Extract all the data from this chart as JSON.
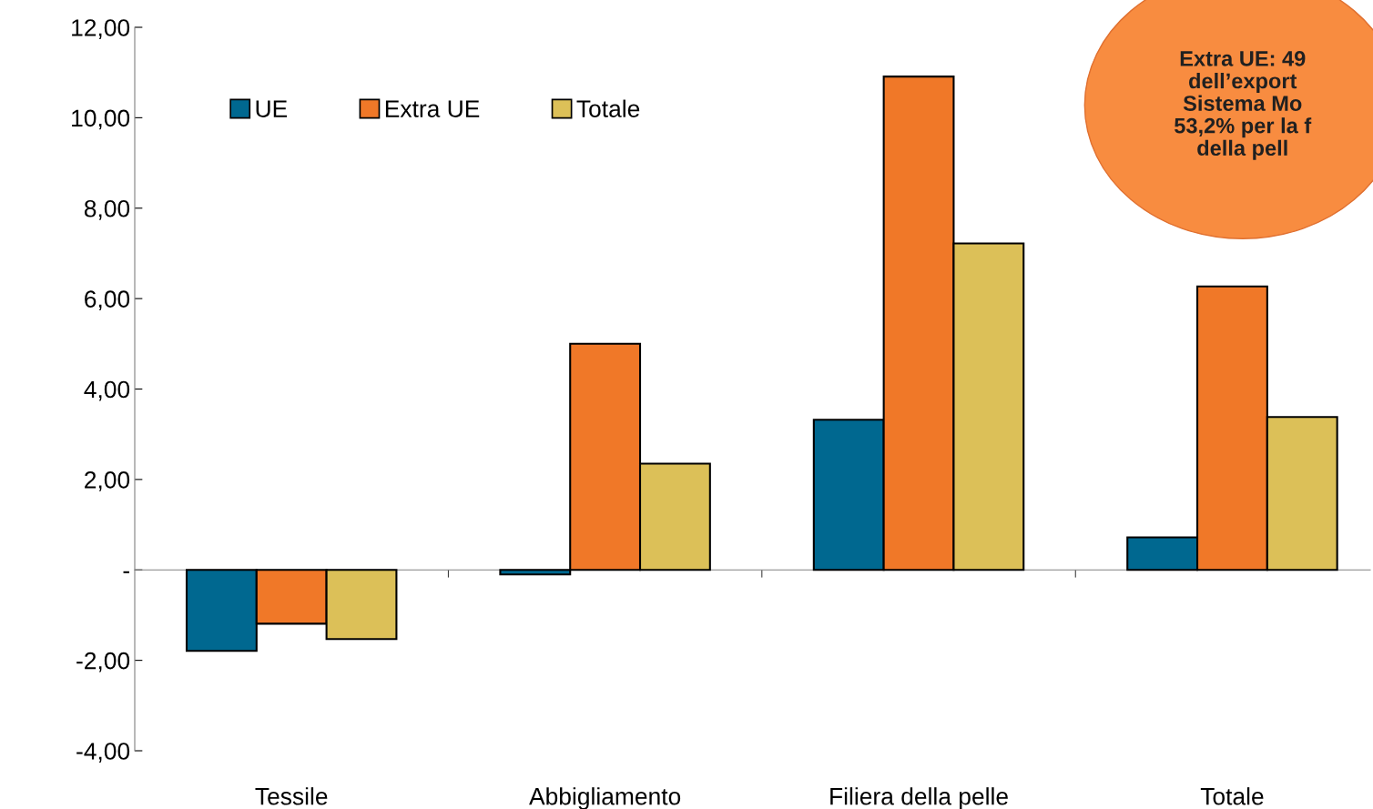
{
  "chart_data": {
    "type": "bar",
    "categories": [
      "Tessile",
      "Abbigliamento",
      "Filiera della pelle",
      "Totale"
    ],
    "series": [
      {
        "name": "UE",
        "color": "#006890",
        "values": [
          -1.79,
          -0.1,
          3.32,
          0.72
        ]
      },
      {
        "name": "Extra UE",
        "color": "#f07828",
        "values": [
          -1.19,
          5.0,
          10.91,
          6.27
        ]
      },
      {
        "name": "Totale",
        "color": "#dcc058",
        "values": [
          -1.53,
          2.35,
          7.22,
          3.38
        ]
      }
    ],
    "ylim": [
      -4,
      12
    ],
    "yticks": [
      {
        "value": -4,
        "label": "-4,00"
      },
      {
        "value": -2,
        "label": "-2,00"
      },
      {
        "value": 0,
        "label": "-"
      },
      {
        "value": 2,
        "label": "2,00"
      },
      {
        "value": 4,
        "label": "4,00"
      },
      {
        "value": 6,
        "label": "6,00"
      },
      {
        "value": 8,
        "label": "8,00"
      },
      {
        "value": 10,
        "label": "10,00"
      },
      {
        "value": 12,
        "label": "12,00"
      }
    ],
    "legend": "top left",
    "annotations": [
      "Extra UE: 49\ndell’export\nSistema Mo\n53,2% per la f\ndella pell"
    ]
  }
}
